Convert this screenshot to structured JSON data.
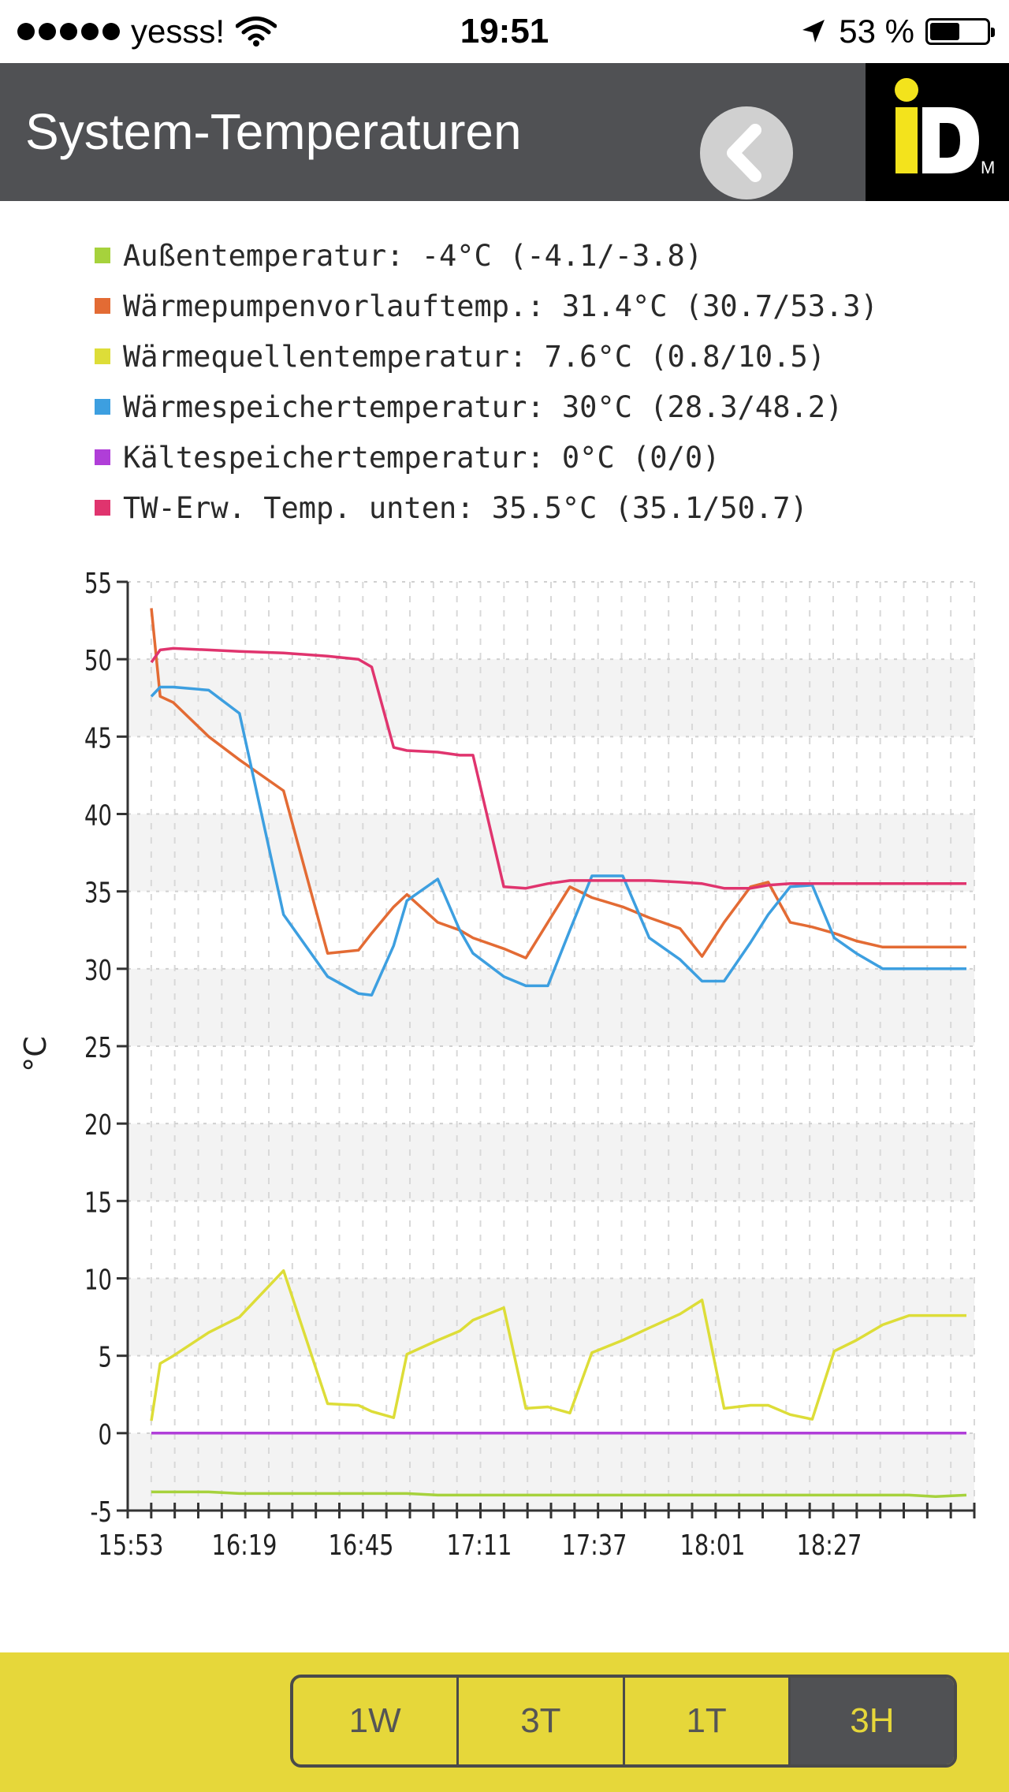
{
  "status_bar": {
    "carrier": "yesss!",
    "time": "19:51",
    "battery": "53 %",
    "battery_level": 0.53
  },
  "header": {
    "title": "System-Temperaturen",
    "back_icon": "chevron-left-icon",
    "logo_icon": "idm-logo"
  },
  "legend": [
    {
      "color": "#a6d23c",
      "text": "Außentemperatur: -4°C (-4.1/-3.8)"
    },
    {
      "color": "#e36b34",
      "text": "Wärmepumpenvorlauftemp.: 31.4°C (30.7/53.3)"
    },
    {
      "color": "#dddd38",
      "text": "Wärmequellentemperatur: 7.6°C (0.8/10.5)"
    },
    {
      "color": "#3d9fe0",
      "text": "Wärmespeichertemperatur: 30°C (28.3/48.2)"
    },
    {
      "color": "#b03ed8",
      "text": "Kältespeichertemperatur: 0°C (0/0)"
    },
    {
      "color": "#e0346e",
      "text": "TW-Erw. Temp. unten: 35.5°C (35.1/50.7)"
    }
  ],
  "chart_data": {
    "type": "line",
    "ylabel": "°C",
    "ylim": [
      -5,
      55
    ],
    "yticks": [
      "55",
      "50",
      "45",
      "40",
      "35",
      "30",
      "25",
      "20",
      "15",
      "10",
      "5",
      "0",
      "-5"
    ],
    "xtick_labels": [
      "15:53",
      "16:19",
      "16:45",
      "17:11",
      "17:37",
      "18:01",
      "18:27"
    ],
    "grid": true,
    "x_minutes_from_1553": [
      0,
      2,
      5,
      13,
      20,
      30,
      40,
      47,
      50,
      55,
      58,
      65,
      70,
      73,
      80,
      85,
      90,
      95,
      100,
      107,
      113,
      120,
      125,
      130,
      136,
      140,
      145,
      150,
      155,
      160,
      166,
      172,
      178,
      185
    ],
    "series": [
      {
        "color": "#a6d23c",
        "values": [
          -3.8,
          -3.8,
          -3.8,
          -3.8,
          -3.9,
          -3.9,
          -3.9,
          -3.9,
          -3.9,
          -3.9,
          -3.9,
          -4.0,
          -4.0,
          -4.0,
          -4.0,
          -4.0,
          -4.0,
          -4.0,
          -4.0,
          -4.0,
          -4.0,
          -4.0,
          -4.0,
          -4.0,
          -4.0,
          -4.0,
          -4.0,
          -4.0,
          -4.0,
          -4.0,
          -4.0,
          -4.0,
          -4.1,
          -4.0
        ]
      },
      {
        "color": "#e36b34",
        "values": [
          53.3,
          47.6,
          47.2,
          45.0,
          43.5,
          41.5,
          31.0,
          31.2,
          32.3,
          34.0,
          34.8,
          33.0,
          32.5,
          32.0,
          31.3,
          30.7,
          33.0,
          35.3,
          34.6,
          34.0,
          33.3,
          32.6,
          30.8,
          33.0,
          35.3,
          35.6,
          33.0,
          32.7,
          32.3,
          31.8,
          31.4,
          31.4,
          31.4,
          31.4
        ]
      },
      {
        "color": "#dddd38",
        "values": [
          0.8,
          4.5,
          5.0,
          6.5,
          7.5,
          10.5,
          1.9,
          1.8,
          1.4,
          1.0,
          5.1,
          6.0,
          6.6,
          7.3,
          8.1,
          1.6,
          1.7,
          1.3,
          5.2,
          6.0,
          6.8,
          7.7,
          8.6,
          1.6,
          1.8,
          1.8,
          1.2,
          0.9,
          5.3,
          6.0,
          7.0,
          7.6,
          7.6,
          7.6
        ]
      },
      {
        "color": "#3d9fe0",
        "values": [
          47.6,
          48.2,
          48.2,
          48.0,
          46.5,
          33.5,
          29.5,
          28.4,
          28.3,
          31.5,
          34.4,
          35.8,
          32.5,
          31.0,
          29.5,
          28.9,
          28.9,
          32.5,
          36.0,
          36.0,
          32.0,
          30.6,
          29.2,
          29.2,
          31.7,
          33.5,
          35.3,
          35.4,
          32.0,
          31.0,
          30.0,
          30.0,
          30.0,
          30.0
        ]
      },
      {
        "color": "#b03ed8",
        "values": [
          0,
          0,
          0,
          0,
          0,
          0,
          0,
          0,
          0,
          0,
          0,
          0,
          0,
          0,
          0,
          0,
          0,
          0,
          0,
          0,
          0,
          0,
          0,
          0,
          0,
          0,
          0,
          0,
          0,
          0,
          0,
          0,
          0,
          0
        ]
      },
      {
        "color": "#e0346e",
        "values": [
          49.8,
          50.6,
          50.7,
          50.6,
          50.5,
          50.4,
          50.2,
          50.0,
          49.5,
          44.3,
          44.1,
          44.0,
          43.8,
          43.8,
          35.3,
          35.2,
          35.5,
          35.7,
          35.7,
          35.7,
          35.7,
          35.6,
          35.5,
          35.2,
          35.2,
          35.4,
          35.5,
          35.5,
          35.5,
          35.5,
          35.5,
          35.5,
          35.5,
          35.5
        ]
      }
    ]
  },
  "range_buttons": [
    {
      "label": "1W",
      "active": false
    },
    {
      "label": "3T",
      "active": false
    },
    {
      "label": "1T",
      "active": false
    },
    {
      "label": "3H",
      "active": true
    }
  ]
}
